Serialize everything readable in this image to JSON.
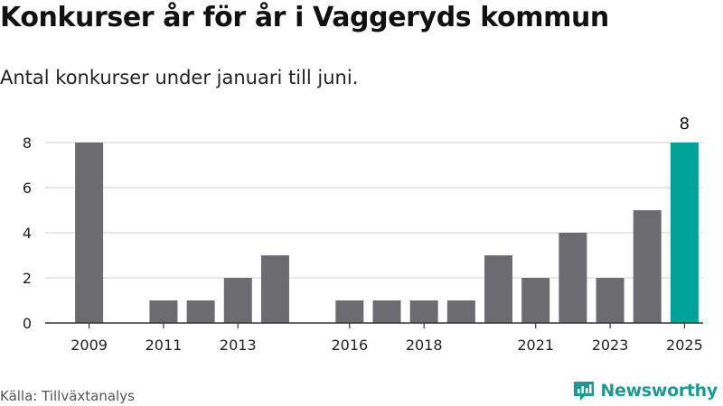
{
  "title": "Konkurser år för år i Vaggeryds kommun",
  "subtitle": "Antal konkurser under januari till juni.",
  "source": "Källa: Tillväxtanalys",
  "brand": "Newsworthy",
  "colors": {
    "bar": "#6c6b70",
    "highlight": "#00a398",
    "grid": "#d9d9d9",
    "axis": "#333333",
    "brand": "#1a9c95"
  },
  "chart_data": {
    "type": "bar",
    "categories": [
      "2009",
      "2010",
      "2011",
      "2012",
      "2013",
      "2014",
      "2015",
      "2016",
      "2017",
      "2018",
      "2019",
      "2020",
      "2021",
      "2022",
      "2023",
      "2024",
      "2025"
    ],
    "values": [
      8,
      0,
      1,
      1,
      2,
      3,
      0,
      1,
      1,
      1,
      1,
      3,
      2,
      4,
      2,
      5,
      8
    ],
    "x_tick_labels": [
      "2009",
      "2011",
      "2013",
      "2016",
      "2018",
      "2021",
      "2023",
      "2025"
    ],
    "y_ticks": [
      0,
      2,
      4,
      6,
      8
    ],
    "ylim": [
      0,
      8
    ],
    "highlight_category": "2025",
    "highlight_label": "8",
    "grid": true,
    "xlabel": "",
    "ylabel": ""
  }
}
